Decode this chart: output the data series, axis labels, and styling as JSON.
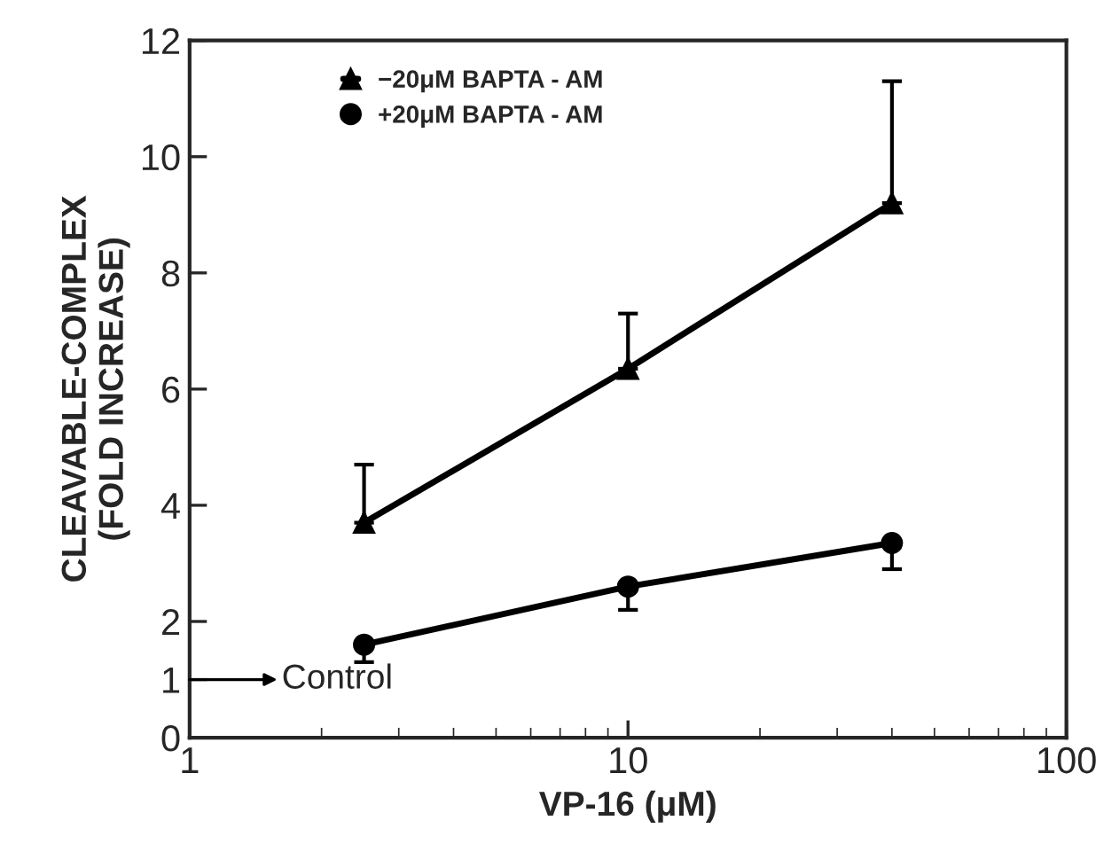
{
  "chart_data": {
    "type": "line",
    "xlabel": "VP-16 (μM)",
    "ylabel": "CLEAVABLE-COMPLEX\n(FOLD INCREASE)",
    "x": [
      2.5,
      10,
      40
    ],
    "log": "x",
    "xlim": [
      1,
      100
    ],
    "xticks": [
      1,
      10,
      100
    ],
    "ylim": [
      0,
      12
    ],
    "yticks": [
      0,
      1,
      2,
      4,
      6,
      8,
      10,
      12
    ],
    "series": [
      {
        "name": "−20μM BAPTA - AM",
        "color": "#000000",
        "marker": "triangle",
        "values": [
          3.7,
          6.35,
          9.2
        ],
        "errors": [
          [
            3.7,
            4.7
          ],
          [
            6.35,
            7.3
          ],
          [
            9.2,
            11.3
          ]
        ]
      },
      {
        "name": "+20μM BAPTA - AM",
        "color": "#000000",
        "marker": "circle",
        "values": [
          1.6,
          2.6,
          3.35
        ],
        "errors": [
          [
            1.3,
            1.6
          ],
          [
            2.2,
            2.6
          ],
          [
            2.9,
            3.35
          ]
        ]
      }
    ],
    "annotations": [
      "Control"
    ],
    "legend": "top left",
    "grid": false,
    "line_style": "solid"
  }
}
